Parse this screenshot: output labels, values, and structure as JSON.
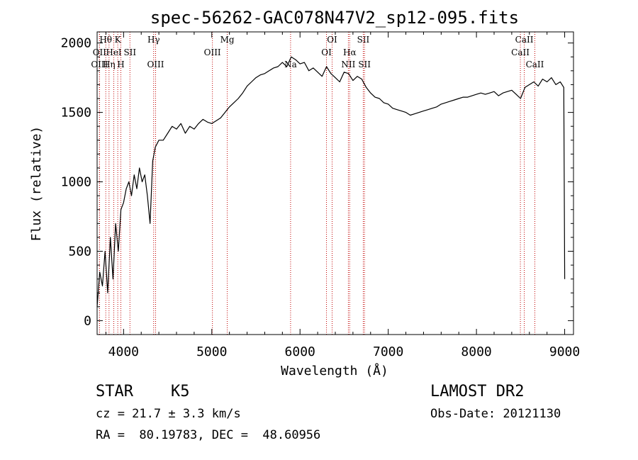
{
  "chart_data": {
    "type": "line",
    "title": "spec-56262-GAC078N47V2_sp12-095.fits",
    "xlabel": "Wavelength (Å)",
    "ylabel": "Flux (relative)",
    "xlim": [
      3700,
      9100
    ],
    "ylim": [
      -100,
      2080
    ],
    "x_ticks": [
      4000,
      5000,
      6000,
      7000,
      8000,
      9000
    ],
    "y_ticks": [
      0,
      500,
      1000,
      1500,
      2000
    ],
    "grid": false,
    "series": [
      {
        "x": [
          3700,
          3730,
          3760,
          3790,
          3820,
          3850,
          3880,
          3910,
          3940,
          3970,
          4000,
          4030,
          4060,
          4090,
          4120,
          4150,
          4180,
          4210,
          4240,
          4270,
          4300,
          4330,
          4360,
          4400,
          4450,
          4500,
          4550,
          4600,
          4650,
          4700,
          4750,
          4800,
          4850,
          4900,
          4950,
          5000,
          5050,
          5100,
          5150,
          5200,
          5250,
          5300,
          5350,
          5400,
          5450,
          5500,
          5550,
          5600,
          5650,
          5700,
          5750,
          5800,
          5850,
          5900,
          5950,
          6000,
          6050,
          6100,
          6150,
          6200,
          6250,
          6300,
          6350,
          6400,
          6450,
          6500,
          6550,
          6600,
          6650,
          6700,
          6750,
          6800,
          6850,
          6900,
          6950,
          7000,
          7050,
          7100,
          7150,
          7200,
          7250,
          7300,
          7350,
          7400,
          7450,
          7500,
          7550,
          7600,
          7650,
          7700,
          7750,
          7800,
          7850,
          7900,
          7950,
          8000,
          8050,
          8100,
          8150,
          8200,
          8250,
          8300,
          8350,
          8400,
          8450,
          8500,
          8550,
          8600,
          8650,
          8700,
          8750,
          8800,
          8850,
          8900,
          8950,
          8990,
          9000
        ],
        "y": [
          100,
          350,
          250,
          500,
          200,
          600,
          300,
          700,
          500,
          800,
          850,
          950,
          1000,
          900,
          1050,
          950,
          1100,
          1000,
          1050,
          900,
          700,
          1150,
          1250,
          1300,
          1300,
          1350,
          1400,
          1380,
          1420,
          1350,
          1400,
          1380,
          1420,
          1450,
          1430,
          1420,
          1440,
          1460,
          1500,
          1540,
          1570,
          1600,
          1640,
          1690,
          1720,
          1750,
          1770,
          1780,
          1800,
          1820,
          1830,
          1860,
          1830,
          1900,
          1880,
          1850,
          1860,
          1800,
          1820,
          1790,
          1760,
          1830,
          1780,
          1750,
          1720,
          1790,
          1780,
          1730,
          1760,
          1740,
          1680,
          1640,
          1610,
          1600,
          1570,
          1560,
          1530,
          1520,
          1510,
          1500,
          1480,
          1490,
          1500,
          1510,
          1520,
          1530,
          1540,
          1560,
          1570,
          1580,
          1590,
          1600,
          1610,
          1610,
          1620,
          1630,
          1640,
          1630,
          1640,
          1650,
          1620,
          1640,
          1650,
          1660,
          1630,
          1600,
          1680,
          1700,
          1720,
          1690,
          1740,
          1720,
          1750,
          1700,
          1720,
          1680,
          300
        ]
      }
    ],
    "lines": [
      {
        "name": "Hθ",
        "x": 3798,
        "row": 0
      },
      {
        "name": "OII",
        "x": 3727,
        "row": 1
      },
      {
        "name": "OIII",
        "x": 3727,
        "row": 2
      },
      {
        "name": "K",
        "x": 3934,
        "row": 0
      },
      {
        "name": "HeI",
        "x": 3889,
        "row": 1
      },
      {
        "name": "Hη",
        "x": 3835,
        "row": 2
      },
      {
        "name": "SII",
        "x": 4072,
        "row": 1
      },
      {
        "name": "H",
        "x": 3969,
        "row": 2
      },
      {
        "name": "Hγ",
        "x": 4341,
        "row": 0
      },
      {
        "name": "OIII",
        "x": 4363,
        "row": 2
      },
      {
        "name": "OIII",
        "x": 5007,
        "row": 1
      },
      {
        "name": "Mg",
        "x": 5175,
        "row": 0
      },
      {
        "name": "Na",
        "x": 5893,
        "row": 2
      },
      {
        "name": "OI",
        "x": 6364,
        "row": 0
      },
      {
        "name": "OI",
        "x": 6300,
        "row": 1
      },
      {
        "name": "Hα",
        "x": 6563,
        "row": 1
      },
      {
        "name": "NII",
        "x": 6548,
        "row": 2
      },
      {
        "name": "SII",
        "x": 6717,
        "row": 0
      },
      {
        "name": "SII",
        "x": 6731,
        "row": 2
      },
      {
        "name": "CaII",
        "x": 8542,
        "row": 0
      },
      {
        "name": "CaII",
        "x": 8498,
        "row": 1
      },
      {
        "name": "CaII",
        "x": 8662,
        "row": 2
      }
    ]
  },
  "info": {
    "object_class": "STAR",
    "subclass": "K5",
    "cz": "cz = 21.7 ± 3.3 km/s",
    "coords": "RA =  80.19783, DEC =  48.60956",
    "survey": "LAMOST DR2",
    "obs_date": "Obs-Date: 20121130"
  }
}
